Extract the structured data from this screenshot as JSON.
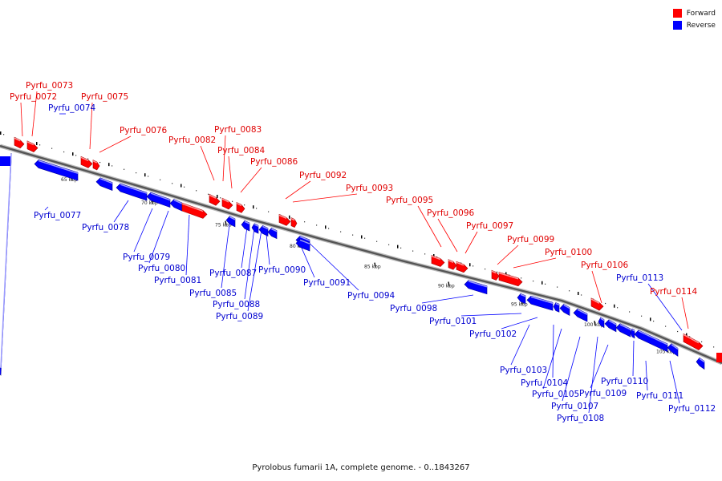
{
  "legend": {
    "forward": {
      "label": "Forward",
      "color": "#ff0000"
    },
    "reverse": {
      "label": "Reverse",
      "color": "#0000ff"
    }
  },
  "caption": "Pyrolobus fumarii 1A, complete genome. - 0..1843267",
  "ticks": [
    "65 kbp",
    "70 kbp",
    "75 kbp",
    "80 kbp",
    "85 kbp",
    "90 kbp",
    "95 kbp",
    "100 kbp",
    "105 kbp"
  ],
  "genes": [
    {
      "name": "Pyrfu_0072",
      "strand": "forward"
    },
    {
      "name": "Pyrfu_0073",
      "strand": "forward"
    },
    {
      "name": "Pyrfu_0074",
      "strand": "reverse"
    },
    {
      "name": "Pyrfu_0075",
      "strand": "forward"
    },
    {
      "name": "Pyrfu_0076",
      "strand": "forward"
    },
    {
      "name": "Pyrfu_0077",
      "strand": "reverse"
    },
    {
      "name": "Pyrfu_0078",
      "strand": "reverse"
    },
    {
      "name": "Pyrfu_0079",
      "strand": "reverse"
    },
    {
      "name": "Pyrfu_0080",
      "strand": "reverse"
    },
    {
      "name": "Pyrfu_0081",
      "strand": "reverse"
    },
    {
      "name": "Pyrfu_0082",
      "strand": "forward"
    },
    {
      "name": "Pyrfu_0083",
      "strand": "forward"
    },
    {
      "name": "Pyrfu_0084",
      "strand": "forward"
    },
    {
      "name": "Pyrfu_0085",
      "strand": "reverse"
    },
    {
      "name": "Pyrfu_0086",
      "strand": "forward"
    },
    {
      "name": "Pyrfu_0087",
      "strand": "reverse"
    },
    {
      "name": "Pyrfu_0088",
      "strand": "reverse"
    },
    {
      "name": "Pyrfu_0089",
      "strand": "reverse"
    },
    {
      "name": "Pyrfu_0090",
      "strand": "reverse"
    },
    {
      "name": "Pyrfu_0091",
      "strand": "reverse"
    },
    {
      "name": "Pyrfu_0092",
      "strand": "forward"
    },
    {
      "name": "Pyrfu_0093",
      "strand": "forward"
    },
    {
      "name": "Pyrfu_0094",
      "strand": "reverse"
    },
    {
      "name": "Pyrfu_0095",
      "strand": "forward"
    },
    {
      "name": "Pyrfu_0096",
      "strand": "forward"
    },
    {
      "name": "Pyrfu_0097",
      "strand": "forward"
    },
    {
      "name": "Pyrfu_0098",
      "strand": "reverse"
    },
    {
      "name": "Pyrfu_0099",
      "strand": "forward"
    },
    {
      "name": "Pyrfu_0100",
      "strand": "forward"
    },
    {
      "name": "Pyrfu_0101",
      "strand": "reverse"
    },
    {
      "name": "Pyrfu_0102",
      "strand": "reverse"
    },
    {
      "name": "Pyrfu_0103",
      "strand": "reverse"
    },
    {
      "name": "Pyrfu_0104",
      "strand": "reverse"
    },
    {
      "name": "Pyrfu_0105",
      "strand": "reverse"
    },
    {
      "name": "Pyrfu_0106",
      "strand": "forward"
    },
    {
      "name": "Pyrfu_0107",
      "strand": "reverse"
    },
    {
      "name": "Pyrfu_0108",
      "strand": "reverse"
    },
    {
      "name": "Pyrfu_0109",
      "strand": "reverse"
    },
    {
      "name": "Pyrfu_0110",
      "strand": "reverse"
    },
    {
      "name": "Pyrfu_0111",
      "strand": "reverse"
    },
    {
      "name": "Pyrfu_0112",
      "strand": "reverse"
    },
    {
      "name": "Pyrfu_0113",
      "strand": "reverse"
    },
    {
      "name": "Pyrfu_0114",
      "strand": "forward"
    }
  ]
}
